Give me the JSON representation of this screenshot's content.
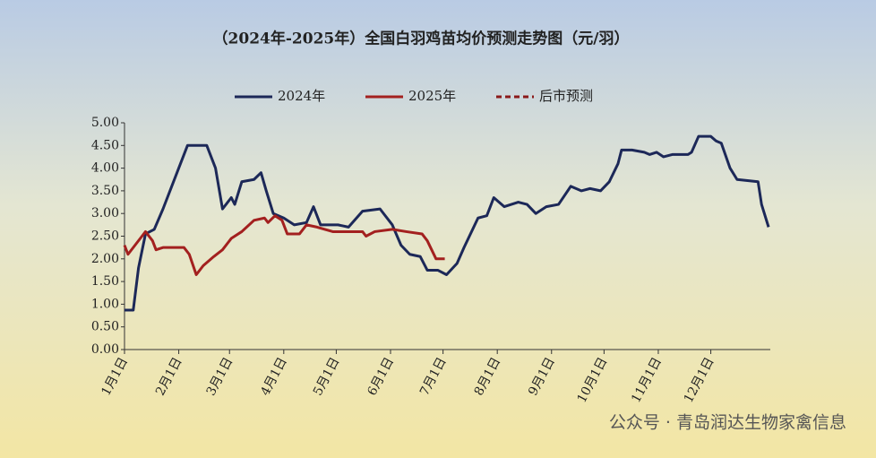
{
  "chart_data": {
    "type": "line",
    "title": "（2024年-2025年）全国白羽鸡苗均价预测走势图（元/羽）",
    "watermark": "公众号 · 青岛润达生物家禽信息",
    "xlim": [
      0,
      369
    ],
    "xticks": [
      {
        "value": 0,
        "label": "1月1日"
      },
      {
        "value": 31,
        "label": "2月1日"
      },
      {
        "value": 60,
        "label": "3月1日"
      },
      {
        "value": 91,
        "label": "4月1日"
      },
      {
        "value": 121,
        "label": "5月1日"
      },
      {
        "value": 152,
        "label": "6月1日"
      },
      {
        "value": 182,
        "label": "7月1日"
      },
      {
        "value": 213,
        "label": "8月1日"
      },
      {
        "value": 244,
        "label": "9月1日"
      },
      {
        "value": 274,
        "label": "10月1日"
      },
      {
        "value": 305,
        "label": "11月1日"
      },
      {
        "value": 335,
        "label": "12月1日"
      }
    ],
    "ylim": [
      0,
      5
    ],
    "yticks": [
      {
        "value": 0,
        "label": "0.00"
      },
      {
        "value": 0.5,
        "label": "0.50"
      },
      {
        "value": 1,
        "label": "1.00"
      },
      {
        "value": 1.5,
        "label": "1.50"
      },
      {
        "value": 2,
        "label": "2.00"
      },
      {
        "value": 2.5,
        "label": "2.50"
      },
      {
        "value": 3,
        "label": "3.00"
      },
      {
        "value": 3.5,
        "label": "3.50"
      },
      {
        "value": 4,
        "label": "4.00"
      },
      {
        "value": 4.5,
        "label": "4.50"
      },
      {
        "value": 5,
        "label": "5.00"
      }
    ],
    "series": [
      {
        "name": "2024年",
        "color": "#1c2858",
        "dashed": false,
        "x": [
          0,
          5,
          8,
          12,
          17,
          22,
          27,
          31,
          36,
          47,
          52,
          56,
          61,
          63,
          67,
          74,
          78,
          81,
          85,
          91,
          97,
          104,
          108,
          112,
          122,
          128,
          136,
          146,
          153,
          158,
          163,
          169,
          173,
          179,
          184,
          190,
          194,
          202,
          207,
          211,
          217,
          225,
          230,
          235,
          241,
          248,
          255,
          261,
          266,
          272,
          277,
          282,
          284,
          290,
          297,
          300,
          304,
          308,
          313,
          322,
          324,
          328,
          335,
          338,
          341,
          346,
          350,
          362,
          364,
          368
        ],
        "values": [
          0.87,
          0.87,
          1.8,
          2.55,
          2.65,
          3.1,
          3.6,
          4.0,
          4.5,
          4.5,
          4.0,
          3.1,
          3.35,
          3.2,
          3.7,
          3.75,
          3.9,
          3.5,
          3.0,
          2.9,
          2.75,
          2.8,
          3.15,
          2.75,
          2.75,
          2.7,
          3.05,
          3.1,
          2.75,
          2.3,
          2.1,
          2.05,
          1.75,
          1.75,
          1.65,
          1.9,
          2.25,
          2.9,
          2.95,
          3.35,
          3.15,
          3.25,
          3.2,
          3.0,
          3.15,
          3.2,
          3.6,
          3.5,
          3.55,
          3.5,
          3.7,
          4.1,
          4.4,
          4.4,
          4.35,
          4.3,
          4.35,
          4.25,
          4.3,
          4.3,
          4.35,
          4.7,
          4.7,
          4.6,
          4.55,
          4.0,
          3.75,
          3.7,
          3.2,
          2.7
        ]
      },
      {
        "name": "2025年",
        "color": "#a3201f",
        "dashed": false,
        "x": [
          0,
          2,
          6,
          10,
          12,
          16,
          18,
          22,
          34,
          37,
          41,
          45,
          51,
          56,
          61,
          67,
          74,
          80,
          82,
          86,
          90,
          93,
          100,
          104,
          110,
          119,
          136,
          138,
          143,
          153,
          161,
          170,
          173,
          178,
          183
        ],
        "values": [
          2.3,
          2.1,
          2.3,
          2.5,
          2.6,
          2.4,
          2.2,
          2.25,
          2.25,
          2.1,
          1.65,
          1.85,
          2.05,
          2.2,
          2.45,
          2.6,
          2.85,
          2.9,
          2.8,
          2.95,
          2.85,
          2.55,
          2.55,
          2.75,
          2.7,
          2.6,
          2.6,
          2.5,
          2.6,
          2.65,
          2.6,
          2.55,
          2.4,
          2.0,
          2.0
        ]
      },
      {
        "name": "后市预测",
        "color": "#8b1a1a",
        "dashed": true,
        "x": [
          null
        ],
        "values": [
          null
        ]
      }
    ]
  }
}
